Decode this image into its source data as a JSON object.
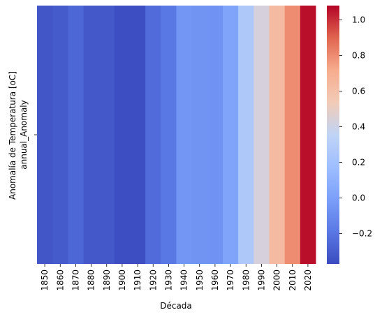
{
  "chart_data": {
    "type": "heatmap",
    "title": "",
    "xlabel": "Década",
    "ylabel": "Anomalía de Temperatura [oC]",
    "row_labels": [
      "annual_Anomaly"
    ],
    "categories": [
      "1850",
      "1860",
      "1870",
      "1880",
      "1890",
      "1900",
      "1910",
      "1920",
      "1930",
      "1940",
      "1950",
      "1960",
      "1970",
      "1980",
      "1990",
      "2000",
      "2010",
      "2020"
    ],
    "values": [
      -0.33,
      -0.31,
      -0.26,
      -0.32,
      -0.32,
      -0.36,
      -0.36,
      -0.24,
      -0.19,
      -0.05,
      -0.06,
      -0.07,
      0.02,
      0.26,
      0.43,
      0.63,
      0.8,
      1.06
    ],
    "colorbar": {
      "colormap": "coolwarm",
      "range": [
        -0.37,
        1.08
      ],
      "ticks": [
        -0.2,
        0.0,
        0.2,
        0.4,
        0.6,
        0.8,
        1.0
      ],
      "tick_labels": [
        "−0.2",
        "0.0",
        "0.2",
        "0.4",
        "0.6",
        "0.8",
        "1.0"
      ]
    },
    "grid": false
  }
}
